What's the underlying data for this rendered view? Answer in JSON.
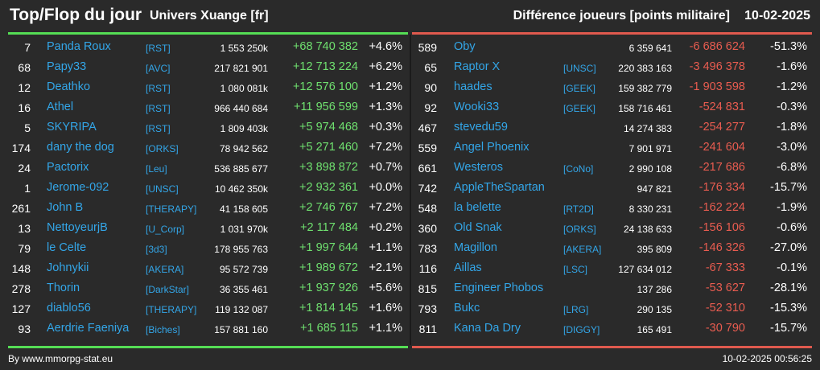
{
  "header": {
    "title": "Top/Flop du jour",
    "universe": "Univers Xuange [fr]",
    "metric": "Différence joueurs [points militaire]",
    "date": "10-02-2025"
  },
  "colors": {
    "top_line": "#55dd55",
    "flop_line": "#e05a4e",
    "name": "#33a6e8",
    "positive": "#6fe06f",
    "negative": "#e95c50"
  },
  "top": [
    {
      "rank": "7",
      "name": "Panda Roux",
      "alliance": "[RST]",
      "points": "1 553 250k",
      "diff": "+68 740 382",
      "pct": "+4.6%"
    },
    {
      "rank": "68",
      "name": "Papy33",
      "alliance": "[AVC]",
      "points": "217 821 901",
      "diff": "+12 713 224",
      "pct": "+6.2%"
    },
    {
      "rank": "12",
      "name": "Deathko",
      "alliance": "[RST]",
      "points": "1 080 081k",
      "diff": "+12 576 100",
      "pct": "+1.2%"
    },
    {
      "rank": "16",
      "name": "Athel",
      "alliance": "[RST]",
      "points": "966 440 684",
      "diff": "+11 956 599",
      "pct": "+1.3%"
    },
    {
      "rank": "5",
      "name": "SKYRIPA",
      "alliance": "[RST]",
      "points": "1 809 403k",
      "diff": "+5 974 468",
      "pct": "+0.3%"
    },
    {
      "rank": "174",
      "name": "dany the dog",
      "alliance": "[ORKS]",
      "points": "78 942 562",
      "diff": "+5 271 460",
      "pct": "+7.2%"
    },
    {
      "rank": "24",
      "name": "Pactorix",
      "alliance": "[Leu]",
      "points": "536 885 677",
      "diff": "+3 898 872",
      "pct": "+0.7%"
    },
    {
      "rank": "1",
      "name": "Jerome-092",
      "alliance": "[UNSC]",
      "points": "10 462 350k",
      "diff": "+2 932 361",
      "pct": "+0.0%"
    },
    {
      "rank": "261",
      "name": "John B",
      "alliance": "[THERAPY]",
      "points": "41 158 605",
      "diff": "+2 746 767",
      "pct": "+7.2%"
    },
    {
      "rank": "13",
      "name": "NettoyeurjB",
      "alliance": "[U_Corp]",
      "points": "1 031 970k",
      "diff": "+2 117 484",
      "pct": "+0.2%"
    },
    {
      "rank": "79",
      "name": "le Celte",
      "alliance": "[3d3]",
      "points": "178 955 763",
      "diff": "+1 997 644",
      "pct": "+1.1%"
    },
    {
      "rank": "148",
      "name": "Johnykii",
      "alliance": "[AKERA]",
      "points": "95 572 739",
      "diff": "+1 989 672",
      "pct": "+2.1%"
    },
    {
      "rank": "278",
      "name": "Thorin",
      "alliance": "[DarkStar]",
      "points": "36 355 461",
      "diff": "+1 937 926",
      "pct": "+5.6%"
    },
    {
      "rank": "127",
      "name": "diablo56",
      "alliance": "[THERAPY]",
      "points": "119 132 087",
      "diff": "+1 814 145",
      "pct": "+1.6%"
    },
    {
      "rank": "93",
      "name": "Aerdrie Faeniya",
      "alliance": "[Biches]",
      "points": "157 881 160",
      "diff": "+1 685 115",
      "pct": "+1.1%"
    }
  ],
  "flop": [
    {
      "rank": "589",
      "name": "Oby",
      "alliance": "",
      "points": "6 359 641",
      "diff": "-6 686 624",
      "pct": "-51.3%"
    },
    {
      "rank": "65",
      "name": "Raptor X",
      "alliance": "[UNSC]",
      "points": "220 383 163",
      "diff": "-3 496 378",
      "pct": "-1.6%"
    },
    {
      "rank": "90",
      "name": "haades",
      "alliance": "[GEEK]",
      "points": "159 382 779",
      "diff": "-1 903 598",
      "pct": "-1.2%"
    },
    {
      "rank": "92",
      "name": "Wooki33",
      "alliance": "[GEEK]",
      "points": "158 716 461",
      "diff": "-524 831",
      "pct": "-0.3%"
    },
    {
      "rank": "467",
      "name": "stevedu59",
      "alliance": "",
      "points": "14 274 383",
      "diff": "-254 277",
      "pct": "-1.8%"
    },
    {
      "rank": "559",
      "name": "Angel Phoenix",
      "alliance": "",
      "points": "7 901 971",
      "diff": "-241 604",
      "pct": "-3.0%"
    },
    {
      "rank": "661",
      "name": "Westeros",
      "alliance": "[CoNo]",
      "points": "2 990 108",
      "diff": "-217 686",
      "pct": "-6.8%"
    },
    {
      "rank": "742",
      "name": "AppleTheSpartan",
      "alliance": "",
      "points": "947 821",
      "diff": "-176 334",
      "pct": "-15.7%"
    },
    {
      "rank": "548",
      "name": "la belette",
      "alliance": "[RT2D]",
      "points": "8 330 231",
      "diff": "-162 224",
      "pct": "-1.9%"
    },
    {
      "rank": "360",
      "name": "Old Snak",
      "alliance": "[ORKS]",
      "points": "24 138 633",
      "diff": "-156 106",
      "pct": "-0.6%"
    },
    {
      "rank": "783",
      "name": "Magillon",
      "alliance": "[AKERA]",
      "points": "395 809",
      "diff": "-146 326",
      "pct": "-27.0%"
    },
    {
      "rank": "116",
      "name": "Aillas",
      "alliance": "[LSC]",
      "points": "127 634 012",
      "diff": "-67 333",
      "pct": "-0.1%"
    },
    {
      "rank": "815",
      "name": "Engineer Phobos",
      "alliance": "",
      "points": "137 286",
      "diff": "-53 627",
      "pct": "-28.1%"
    },
    {
      "rank": "793",
      "name": "Bukc",
      "alliance": "[LRG]",
      "points": "290 135",
      "diff": "-52 310",
      "pct": "-15.3%"
    },
    {
      "rank": "811",
      "name": "Kana Da Dry",
      "alliance": "[DIGGY]",
      "points": "165 491",
      "diff": "-30 790",
      "pct": "-15.7%"
    }
  ],
  "footer": {
    "credit": "By www.mmorpg-stat.eu",
    "timestamp": "10-02-2025 00:56:25"
  }
}
